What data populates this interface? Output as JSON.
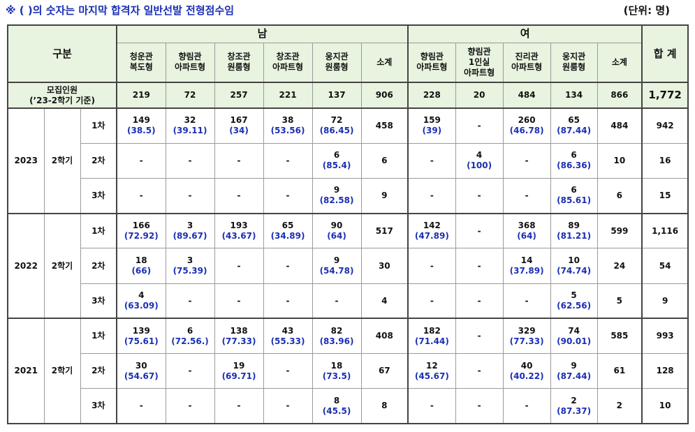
{
  "header": {
    "note": "※ ( )의 숫자는 마지막 합격자 일반선발 전형점수임",
    "unit": "(단위: 명)"
  },
  "table": {
    "col_group_label": "구분",
    "male_label": "남",
    "female_label": "여",
    "total_label": "합 계",
    "male_cols": [
      [
        "청운관",
        "복도형"
      ],
      [
        "향림관",
        "아파트형"
      ],
      [
        "창조관",
        "원룸형"
      ],
      [
        "창조관",
        "아파트형"
      ],
      [
        "웅지관",
        "원룸형"
      ]
    ],
    "male_subtotal": "소계",
    "female_cols": [
      [
        "향림관",
        "아파트형"
      ],
      [
        "향림관",
        "1인실",
        "아파트형"
      ],
      [
        "진리관",
        "아파트형"
      ],
      [
        "웅지관",
        "원룸형"
      ]
    ],
    "female_subtotal": "소계",
    "recruit": {
      "label1": "모집인원",
      "label2": "(’23-2학기 기준)",
      "values": [
        "219",
        "72",
        "257",
        "221",
        "137",
        "906",
        "228",
        "20",
        "484",
        "134",
        "866",
        "1,772"
      ]
    },
    "years": [
      {
        "year": "2023",
        "term": "2학기",
        "rounds": [
          {
            "round": "1차",
            "cells": [
              [
                "149",
                "(38.5)"
              ],
              [
                "32",
                "(39.11)"
              ],
              [
                "167",
                "(34)"
              ],
              [
                "38",
                "(53.56)"
              ],
              [
                "72",
                "(86.45)"
              ],
              [
                "458",
                ""
              ],
              [
                "159",
                "(39)"
              ],
              [
                "-",
                ""
              ],
              [
                "260",
                "(46.78)"
              ],
              [
                "65",
                "(87.44)"
              ],
              [
                "484",
                ""
              ],
              [
                "942",
                ""
              ]
            ]
          },
          {
            "round": "2차",
            "cells": [
              [
                "-",
                ""
              ],
              [
                "-",
                ""
              ],
              [
                "-",
                ""
              ],
              [
                "-",
                ""
              ],
              [
                "6",
                "(85.4)"
              ],
              [
                "6",
                ""
              ],
              [
                "-",
                ""
              ],
              [
                "4",
                "(100)"
              ],
              [
                "-",
                ""
              ],
              [
                "6",
                "(86.36)"
              ],
              [
                "10",
                ""
              ],
              [
                "16",
                ""
              ]
            ]
          },
          {
            "round": "3차",
            "cells": [
              [
                "-",
                ""
              ],
              [
                "-",
                ""
              ],
              [
                "-",
                ""
              ],
              [
                "-",
                ""
              ],
              [
                "9",
                "(82.58)"
              ],
              [
                "9",
                ""
              ],
              [
                "-",
                ""
              ],
              [
                "-",
                ""
              ],
              [
                "-",
                ""
              ],
              [
                "6",
                "(85.61)"
              ],
              [
                "6",
                ""
              ],
              [
                "15",
                ""
              ]
            ]
          }
        ]
      },
      {
        "year": "2022",
        "term": "2학기",
        "rounds": [
          {
            "round": "1차",
            "cells": [
              [
                "166",
                "(72.92)"
              ],
              [
                "3",
                "(89.67)"
              ],
              [
                "193",
                "(43.67)"
              ],
              [
                "65",
                "(34.89)"
              ],
              [
                "90",
                "(64)"
              ],
              [
                "517",
                ""
              ],
              [
                "142",
                "(47.89)"
              ],
              [
                "-",
                ""
              ],
              [
                "368",
                "(64)"
              ],
              [
                "89",
                "(81.21)"
              ],
              [
                "599",
                ""
              ],
              [
                "1,116",
                ""
              ]
            ]
          },
          {
            "round": "2차",
            "cells": [
              [
                "18",
                "(66)"
              ],
              [
                "3",
                "(75.39)"
              ],
              [
                "-",
                ""
              ],
              [
                "-",
                ""
              ],
              [
                "9",
                "(54.78)"
              ],
              [
                "30",
                ""
              ],
              [
                "-",
                ""
              ],
              [
                "-",
                ""
              ],
              [
                "14",
                "(37.89)"
              ],
              [
                "10",
                "(74.74)"
              ],
              [
                "24",
                ""
              ],
              [
                "54",
                ""
              ]
            ]
          },
          {
            "round": "3차",
            "cells": [
              [
                "4",
                "(63.09)"
              ],
              [
                "-",
                ""
              ],
              [
                "-",
                ""
              ],
              [
                "-",
                ""
              ],
              [
                "-",
                ""
              ],
              [
                "4",
                ""
              ],
              [
                "-",
                ""
              ],
              [
                "-",
                ""
              ],
              [
                "-",
                ""
              ],
              [
                "5",
                "(62.56)"
              ],
              [
                "5",
                ""
              ],
              [
                "9",
                ""
              ]
            ]
          }
        ]
      },
      {
        "year": "2021",
        "term": "2학기",
        "rounds": [
          {
            "round": "1차",
            "cells": [
              [
                "139",
                "(75.61)"
              ],
              [
                "6",
                "(72.56.)"
              ],
              [
                "138",
                "(77.33)"
              ],
              [
                "43",
                "(55.33)"
              ],
              [
                "82",
                "(83.96)"
              ],
              [
                "408",
                ""
              ],
              [
                "182",
                "(71.44)"
              ],
              [
                "-",
                ""
              ],
              [
                "329",
                "(77.33)"
              ],
              [
                "74",
                "(90.01)"
              ],
              [
                "585",
                ""
              ],
              [
                "993",
                ""
              ]
            ]
          },
          {
            "round": "2차",
            "cells": [
              [
                "30",
                "(54.67)"
              ],
              [
                "-",
                ""
              ],
              [
                "19",
                "(69.71)"
              ],
              [
                "-",
                ""
              ],
              [
                "18",
                "(73.5)"
              ],
              [
                "67",
                ""
              ],
              [
                "12",
                "(45.67)"
              ],
              [
                "-",
                ""
              ],
              [
                "40",
                "(40.22)"
              ],
              [
                "9",
                "(87.44)"
              ],
              [
                "61",
                ""
              ],
              [
                "128",
                ""
              ]
            ]
          },
          {
            "round": "3차",
            "cells": [
              [
                "-",
                ""
              ],
              [
                "-",
                ""
              ],
              [
                "-",
                ""
              ],
              [
                "-",
                ""
              ],
              [
                "8",
                "(45.5)"
              ],
              [
                "8",
                ""
              ],
              [
                "-",
                ""
              ],
              [
                "-",
                ""
              ],
              [
                "-",
                ""
              ],
              [
                "2",
                "(87.37)"
              ],
              [
                "2",
                ""
              ],
              [
                "10",
                ""
              ]
            ]
          }
        ]
      }
    ]
  }
}
